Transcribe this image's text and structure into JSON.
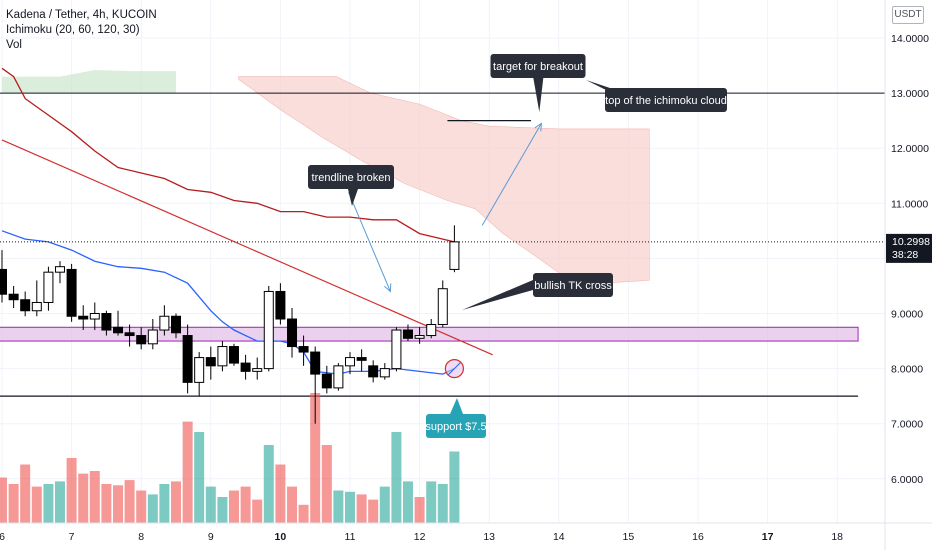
{
  "header": {
    "symbol_line": "Kadena / Tether, 4h, KUCOIN",
    "indicator_line": "Ichimoku (20, 60, 120, 30)",
    "volume_line": "Vol",
    "currency_badge": "USDT"
  },
  "colors": {
    "bull": "#26a69a",
    "bear": "#ef5350",
    "candle": "#000000",
    "tenkan": "#2962ff",
    "kijun": "#b71c1c",
    "lagging": "#d32f2f",
    "cloud_bear": "#f7c9c6",
    "cloud_bull": "#c7e3c7",
    "support_zone": "#e1bee7",
    "callout_dark": "#2a2e39",
    "callout_teal": "#26a3b5"
  },
  "chart_data": {
    "type": "candlestick",
    "ylim": [
      5,
      14.7
    ],
    "y_ticks": [
      "14.0000",
      "13.0000",
      "12.0000",
      "11.0000",
      "10.0000",
      "9.0000",
      "8.0000",
      "7.0000",
      "6.0000"
    ],
    "y_tick_values": [
      14,
      13,
      12,
      11,
      10,
      9,
      8,
      7,
      6
    ],
    "x_ticks": [
      "6",
      "7",
      "8",
      "9",
      "10",
      "11",
      "12",
      "13",
      "14",
      "15",
      "16",
      "17",
      "18"
    ],
    "x_tick_values": [
      6,
      7,
      8,
      9,
      10,
      11,
      12,
      13,
      14,
      15,
      16,
      17,
      18
    ],
    "x_range": [
      6,
      18.7
    ],
    "bold_ticks": [
      "10",
      "17"
    ],
    "last_price": "10.2998",
    "countdown": "38:28",
    "candles": [
      {
        "t": 6.0,
        "o": 9.8,
        "h": 10.15,
        "l": 9.2,
        "c": 9.35
      },
      {
        "t": 6.167,
        "o": 9.35,
        "h": 9.5,
        "l": 9.1,
        "c": 9.25
      },
      {
        "t": 6.333,
        "o": 9.25,
        "h": 9.4,
        "l": 8.95,
        "c": 9.05
      },
      {
        "t": 6.5,
        "o": 9.05,
        "h": 9.6,
        "l": 8.95,
        "c": 9.2
      },
      {
        "t": 6.667,
        "o": 9.2,
        "h": 9.85,
        "l": 9.05,
        "c": 9.75
      },
      {
        "t": 6.833,
        "o": 9.75,
        "h": 9.95,
        "l": 9.55,
        "c": 9.85
      },
      {
        "t": 7.0,
        "o": 9.8,
        "h": 9.9,
        "l": 8.85,
        "c": 8.95
      },
      {
        "t": 7.167,
        "o": 8.95,
        "h": 9.15,
        "l": 8.7,
        "c": 8.9
      },
      {
        "t": 7.333,
        "o": 8.9,
        "h": 9.2,
        "l": 8.7,
        "c": 9.0
      },
      {
        "t": 7.5,
        "o": 9.0,
        "h": 9.05,
        "l": 8.6,
        "c": 8.7
      },
      {
        "t": 7.667,
        "o": 8.75,
        "h": 9.05,
        "l": 8.6,
        "c": 8.65
      },
      {
        "t": 7.833,
        "o": 8.65,
        "h": 8.8,
        "l": 8.4,
        "c": 8.6
      },
      {
        "t": 8.0,
        "o": 8.6,
        "h": 8.75,
        "l": 8.35,
        "c": 8.45
      },
      {
        "t": 8.167,
        "o": 8.45,
        "h": 8.9,
        "l": 8.35,
        "c": 8.7
      },
      {
        "t": 8.333,
        "o": 8.7,
        "h": 9.15,
        "l": 8.6,
        "c": 8.95
      },
      {
        "t": 8.5,
        "o": 8.95,
        "h": 9.0,
        "l": 8.55,
        "c": 8.65
      },
      {
        "t": 8.667,
        "o": 8.6,
        "h": 8.8,
        "l": 7.55,
        "c": 7.75
      },
      {
        "t": 8.833,
        "o": 7.75,
        "h": 8.3,
        "l": 7.5,
        "c": 8.2
      },
      {
        "t": 9.0,
        "o": 8.2,
        "h": 8.4,
        "l": 7.8,
        "c": 8.05
      },
      {
        "t": 9.167,
        "o": 8.05,
        "h": 8.5,
        "l": 7.95,
        "c": 8.4
      },
      {
        "t": 9.333,
        "o": 8.4,
        "h": 8.45,
        "l": 8.05,
        "c": 8.1
      },
      {
        "t": 9.5,
        "o": 8.1,
        "h": 8.25,
        "l": 7.8,
        "c": 7.95
      },
      {
        "t": 9.667,
        "o": 7.95,
        "h": 8.2,
        "l": 7.8,
        "c": 8.0
      },
      {
        "t": 9.833,
        "o": 8.0,
        "h": 9.5,
        "l": 7.95,
        "c": 9.4
      },
      {
        "t": 10.0,
        "o": 9.4,
        "h": 9.55,
        "l": 8.8,
        "c": 8.9
      },
      {
        "t": 10.167,
        "o": 8.9,
        "h": 9.1,
        "l": 8.2,
        "c": 8.4
      },
      {
        "t": 10.333,
        "o": 8.4,
        "h": 8.6,
        "l": 8.05,
        "c": 8.3
      },
      {
        "t": 10.5,
        "o": 8.3,
        "h": 8.4,
        "l": 7.0,
        "c": 7.9
      },
      {
        "t": 10.667,
        "o": 7.9,
        "h": 8.05,
        "l": 7.55,
        "c": 7.65
      },
      {
        "t": 10.833,
        "o": 7.65,
        "h": 8.1,
        "l": 7.6,
        "c": 8.05
      },
      {
        "t": 11.0,
        "o": 8.05,
        "h": 8.3,
        "l": 7.9,
        "c": 8.2
      },
      {
        "t": 11.167,
        "o": 8.2,
        "h": 8.35,
        "l": 7.95,
        "c": 8.15
      },
      {
        "t": 11.333,
        "o": 8.05,
        "h": 8.15,
        "l": 7.75,
        "c": 7.85
      },
      {
        "t": 11.5,
        "o": 7.85,
        "h": 8.1,
        "l": 7.8,
        "c": 8.0
      },
      {
        "t": 11.667,
        "o": 8.0,
        "h": 8.75,
        "l": 7.95,
        "c": 8.7
      },
      {
        "t": 11.833,
        "o": 8.7,
        "h": 8.8,
        "l": 8.5,
        "c": 8.55
      },
      {
        "t": 12.0,
        "o": 8.55,
        "h": 8.75,
        "l": 8.45,
        "c": 8.6
      },
      {
        "t": 12.167,
        "o": 8.6,
        "h": 8.9,
        "l": 8.55,
        "c": 8.8
      },
      {
        "t": 12.333,
        "o": 8.8,
        "h": 9.6,
        "l": 8.75,
        "c": 9.45
      },
      {
        "t": 12.5,
        "o": 9.8,
        "h": 10.6,
        "l": 9.75,
        "c": 10.3
      }
    ],
    "volume": [
      {
        "t": 6.0,
        "v": 0.35,
        "dir": "down"
      },
      {
        "t": 6.167,
        "v": 0.3,
        "dir": "down"
      },
      {
        "t": 6.333,
        "v": 0.45,
        "dir": "down"
      },
      {
        "t": 6.5,
        "v": 0.28,
        "dir": "down"
      },
      {
        "t": 6.667,
        "v": 0.3,
        "dir": "up"
      },
      {
        "t": 6.833,
        "v": 0.32,
        "dir": "up"
      },
      {
        "t": 7.0,
        "v": 0.5,
        "dir": "down"
      },
      {
        "t": 7.167,
        "v": 0.38,
        "dir": "down"
      },
      {
        "t": 7.333,
        "v": 0.4,
        "dir": "down"
      },
      {
        "t": 7.5,
        "v": 0.3,
        "dir": "down"
      },
      {
        "t": 7.667,
        "v": 0.29,
        "dir": "down"
      },
      {
        "t": 7.833,
        "v": 0.33,
        "dir": "down"
      },
      {
        "t": 8.0,
        "v": 0.25,
        "dir": "down"
      },
      {
        "t": 8.167,
        "v": 0.22,
        "dir": "up"
      },
      {
        "t": 8.333,
        "v": 0.3,
        "dir": "up"
      },
      {
        "t": 8.5,
        "v": 0.32,
        "dir": "down"
      },
      {
        "t": 8.667,
        "v": 0.78,
        "dir": "down"
      },
      {
        "t": 8.833,
        "v": 0.7,
        "dir": "up"
      },
      {
        "t": 9.0,
        "v": 0.28,
        "dir": "up"
      },
      {
        "t": 9.167,
        "v": 0.2,
        "dir": "up"
      },
      {
        "t": 9.333,
        "v": 0.25,
        "dir": "down"
      },
      {
        "t": 9.5,
        "v": 0.28,
        "dir": "down"
      },
      {
        "t": 9.667,
        "v": 0.18,
        "dir": "down"
      },
      {
        "t": 9.833,
        "v": 0.6,
        "dir": "up"
      },
      {
        "t": 10.0,
        "v": 0.45,
        "dir": "down"
      },
      {
        "t": 10.167,
        "v": 0.28,
        "dir": "down"
      },
      {
        "t": 10.333,
        "v": 0.14,
        "dir": "down"
      },
      {
        "t": 10.5,
        "v": 1.0,
        "dir": "down"
      },
      {
        "t": 10.667,
        "v": 0.6,
        "dir": "down"
      },
      {
        "t": 10.833,
        "v": 0.25,
        "dir": "up"
      },
      {
        "t": 11.0,
        "v": 0.24,
        "dir": "up"
      },
      {
        "t": 11.167,
        "v": 0.22,
        "dir": "down"
      },
      {
        "t": 11.333,
        "v": 0.18,
        "dir": "down"
      },
      {
        "t": 11.5,
        "v": 0.28,
        "dir": "up"
      },
      {
        "t": 11.667,
        "v": 0.7,
        "dir": "up"
      },
      {
        "t": 11.833,
        "v": 0.32,
        "dir": "up"
      },
      {
        "t": 12.0,
        "v": 0.2,
        "dir": "down"
      },
      {
        "t": 12.167,
        "v": 0.32,
        "dir": "up"
      },
      {
        "t": 12.333,
        "v": 0.3,
        "dir": "up"
      },
      {
        "t": 12.5,
        "v": 0.55,
        "dir": "up"
      }
    ],
    "tenkan": [
      [
        6.0,
        10.5
      ],
      [
        6.333,
        10.35
      ],
      [
        6.667,
        10.3
      ],
      [
        7.0,
        10.15
      ],
      [
        7.333,
        9.95
      ],
      [
        7.667,
        9.85
      ],
      [
        8.0,
        9.82
      ],
      [
        8.333,
        9.75
      ],
      [
        8.667,
        9.55
      ],
      [
        9.0,
        9.05
      ],
      [
        9.167,
        8.85
      ],
      [
        9.333,
        8.7
      ],
      [
        9.667,
        8.5
      ],
      [
        10.0,
        8.5
      ],
      [
        10.167,
        8.45
      ],
      [
        10.333,
        8.3
      ],
      [
        10.5,
        7.95
      ],
      [
        10.833,
        7.9
      ],
      [
        11.0,
        7.95
      ],
      [
        11.333,
        7.95
      ],
      [
        11.667,
        8.0
      ],
      [
        12.0,
        7.95
      ],
      [
        12.333,
        7.9
      ],
      [
        12.5,
        8.0
      ]
    ],
    "kijun": [
      [
        6.0,
        13.45
      ],
      [
        6.167,
        13.3
      ],
      [
        6.333,
        12.9
      ],
      [
        6.667,
        12.6
      ],
      [
        7.0,
        12.3
      ],
      [
        7.333,
        11.95
      ],
      [
        7.667,
        11.65
      ],
      [
        8.0,
        11.55
      ],
      [
        8.333,
        11.45
      ],
      [
        8.667,
        11.25
      ],
      [
        9.0,
        11.2
      ],
      [
        9.333,
        11.05
      ],
      [
        9.667,
        11.0
      ],
      [
        10.0,
        10.85
      ],
      [
        10.333,
        10.85
      ],
      [
        10.667,
        10.75
      ],
      [
        11.0,
        10.75
      ],
      [
        11.333,
        10.7
      ],
      [
        11.667,
        10.7
      ],
      [
        12.0,
        10.45
      ],
      [
        12.5,
        10.3
      ]
    ],
    "cloud_upper": [
      [
        9.4,
        13.3
      ],
      [
        10.8,
        13.3
      ],
      [
        11.3,
        13.0
      ],
      [
        12.0,
        12.8
      ],
      [
        12.3,
        12.65
      ],
      [
        12.6,
        12.5
      ],
      [
        13.0,
        12.4
      ],
      [
        14.0,
        12.35
      ],
      [
        15.3,
        12.35
      ]
    ],
    "cloud_lower": [
      [
        9.4,
        13.25
      ],
      [
        10.0,
        12.7
      ],
      [
        10.6,
        12.2
      ],
      [
        11.2,
        11.75
      ],
      [
        11.8,
        11.35
      ],
      [
        12.4,
        11.05
      ],
      [
        12.8,
        10.9
      ],
      [
        13.2,
        10.45
      ],
      [
        13.6,
        10.1
      ],
      [
        14.1,
        9.65
      ],
      [
        14.6,
        9.55
      ],
      [
        15.3,
        9.6
      ]
    ],
    "bull_cloud_upper": [
      [
        6.0,
        13.3
      ],
      [
        6.833,
        13.3
      ],
      [
        7.333,
        13.42
      ],
      [
        7.833,
        13.4
      ],
      [
        8.5,
        13.4
      ]
    ],
    "bull_cloud_lower": [
      [
        6.0,
        13.0
      ],
      [
        8.5,
        13.0
      ]
    ],
    "trendline": [
      [
        6.0,
        12.15
      ],
      [
        13.05,
        8.25
      ]
    ],
    "support_zone": [
      8.5,
      8.75
    ],
    "support_line": 7.5,
    "resistance_line": 13.0,
    "target_segment": {
      "x": [
        12.4,
        13.6
      ],
      "y": 12.5
    }
  },
  "annotations": {
    "target": "target for breakout",
    "top_cloud": "top of the ichimoku cloud",
    "trendline": "trendline broken",
    "tk_cross": "bullish TK cross",
    "support": "support $7.5"
  }
}
